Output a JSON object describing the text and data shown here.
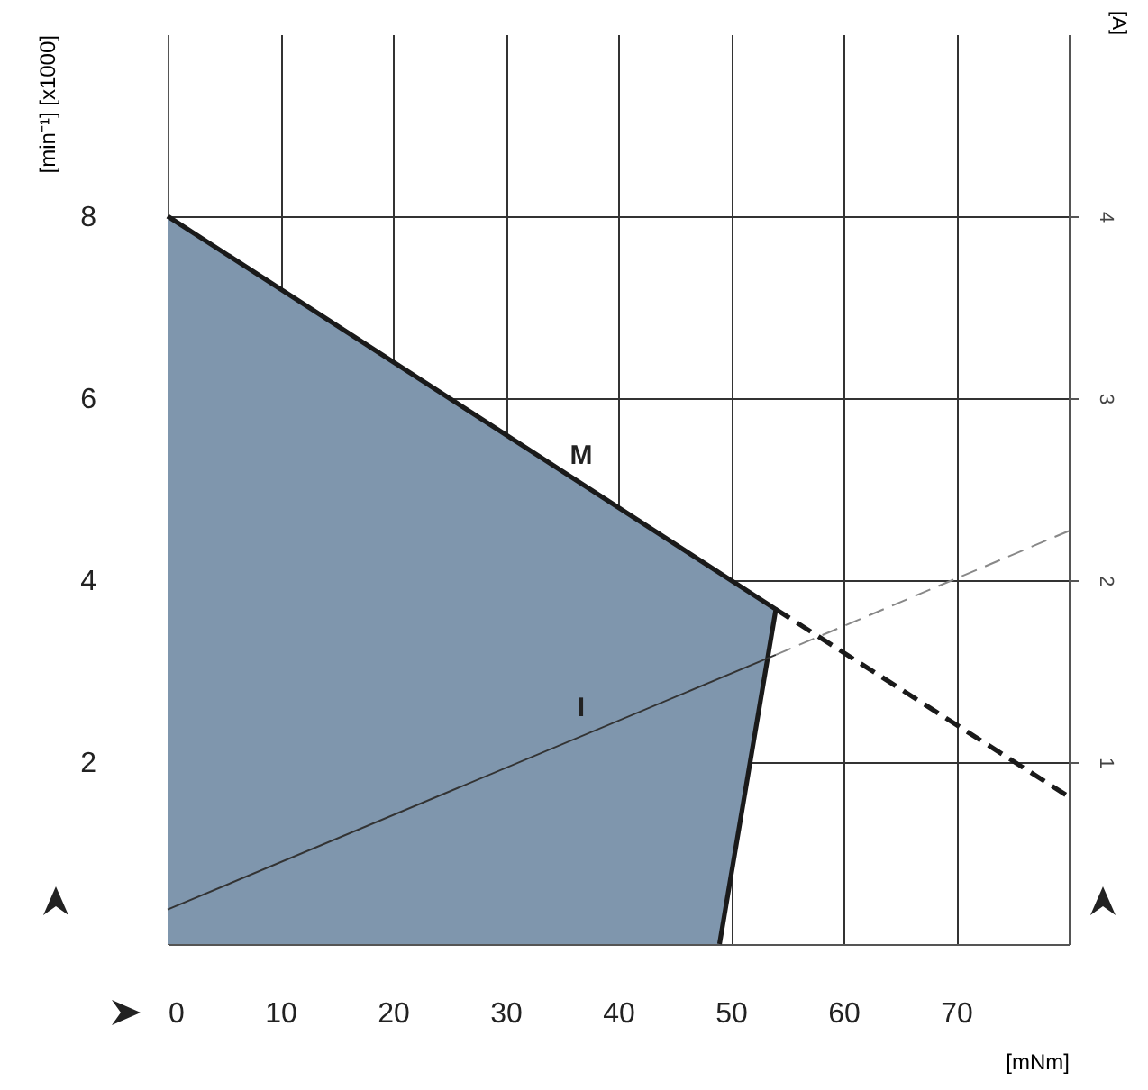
{
  "chart_data": {
    "type": "line",
    "xlabel": "[mNm]",
    "ylabel": "[min⁻¹] [x1000]",
    "y2label": "[A]",
    "xlim": [
      0,
      80
    ],
    "xticks": [
      0,
      10,
      20,
      30,
      40,
      50,
      60,
      70,
      {
        "value": 80,
        "label": null
      }
    ],
    "ylim": [
      0,
      10
    ],
    "yticks": [
      2,
      4,
      6,
      8
    ],
    "y2lim": [
      0,
      5
    ],
    "y2ticks": [
      1,
      2,
      3,
      4
    ],
    "grid": true,
    "series": [
      {
        "type": "area",
        "name": "M",
        "color": "#7f96ad",
        "line_style": "solid",
        "x": [
          49,
          54,
          0
        ],
        "values": [
          0,
          3.68,
          8
        ]
      },
      {
        "color": "#1a1a1a",
        "line_style": "dashed",
        "x": [
          54,
          80
        ],
        "values": [
          3.68,
          1.62
        ]
      },
      {
        "name": "I",
        "color": "#333333",
        "line_style": "solid",
        "axis": "y2",
        "x": [
          0,
          54
        ],
        "values": [
          0.19,
          1.59
        ]
      },
      {
        "color": "#888888",
        "line_style": "dashed",
        "axis": "y2",
        "x": [
          54,
          80
        ],
        "values": [
          1.59,
          2.27
        ]
      }
    ]
  }
}
